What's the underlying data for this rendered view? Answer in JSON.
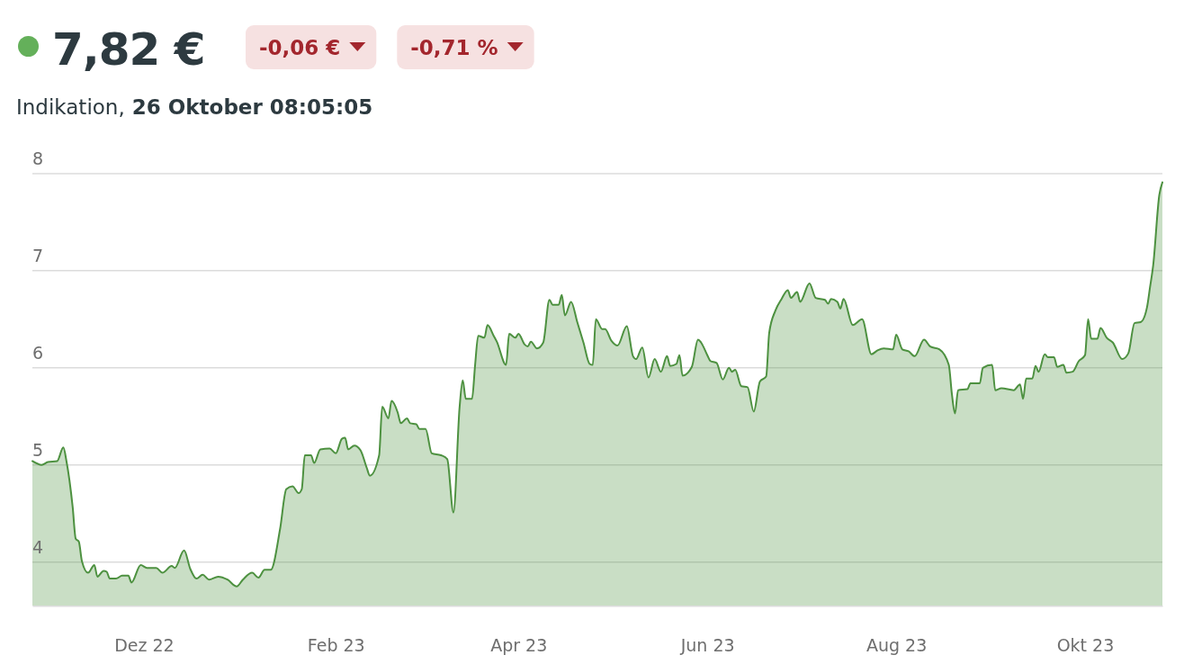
{
  "chart_data": {
    "type": "area",
    "title": "7,82 €",
    "subtitle": "Indikation, 26 Oktober 08:05:05",
    "annotations": [
      "-0,06 €",
      "-0,71 %"
    ],
    "x": [
      "2022-10-26",
      "2022-10-29",
      "2022-10-31",
      "2022-11-03",
      "2022-11-05",
      "2022-11-06",
      "2022-11-08",
      "2022-11-09",
      "2022-11-10",
      "2022-11-11",
      "2022-11-13",
      "2022-11-15",
      "2022-11-16",
      "2022-11-18",
      "2022-11-19",
      "2022-11-20",
      "2022-11-22",
      "2022-11-24",
      "2022-11-26",
      "2022-11-27",
      "2022-11-30",
      "2022-12-02",
      "2022-12-05",
      "2022-12-07",
      "2022-12-10",
      "2022-12-11",
      "2022-12-14",
      "2022-12-16",
      "2022-12-18",
      "2022-12-20",
      "2022-12-22",
      "2022-12-25",
      "2022-12-28",
      "2022-12-31",
      "2023-01-02",
      "2023-01-05",
      "2023-01-07",
      "2023-01-09",
      "2023-01-11",
      "2023-01-14",
      "2023-01-16",
      "2023-01-18",
      "2023-01-20",
      "2023-01-21",
      "2023-01-22",
      "2023-01-24",
      "2023-01-25",
      "2023-01-27",
      "2023-01-30",
      "2023-02-01",
      "2023-02-03",
      "2023-02-04",
      "2023-02-05",
      "2023-02-07",
      "2023-02-09",
      "2023-02-11",
      "2023-02-12",
      "2023-02-15",
      "2023-02-16",
      "2023-02-18",
      "2023-02-19",
      "2023-02-21",
      "2023-02-22",
      "2023-02-24",
      "2023-02-25",
      "2023-02-27",
      "2023-02-28",
      "2023-03-02",
      "2023-03-04",
      "2023-03-07",
      "2023-03-09",
      "2023-03-11",
      "2023-03-13",
      "2023-03-14",
      "2023-03-15",
      "2023-03-17",
      "2023-03-18",
      "2023-03-19",
      "2023-03-21",
      "2023-03-22",
      "2023-03-24",
      "2023-03-25",
      "2023-03-28",
      "2023-03-29",
      "2023-03-31",
      "2023-04-01",
      "2023-04-03",
      "2023-04-04",
      "2023-04-05",
      "2023-04-07",
      "2023-04-09",
      "2023-04-11",
      "2023-04-12",
      "2023-04-14",
      "2023-04-15",
      "2023-04-16",
      "2023-04-18",
      "2023-04-20",
      "2023-04-22",
      "2023-04-24",
      "2023-04-25",
      "2023-04-26",
      "2023-04-28",
      "2023-04-29",
      "2023-05-01",
      "2023-05-03",
      "2023-05-06",
      "2023-05-08",
      "2023-05-09",
      "2023-05-11",
      "2023-05-13",
      "2023-05-15",
      "2023-05-17",
      "2023-05-19",
      "2023-05-20",
      "2023-05-22",
      "2023-05-23",
      "2023-05-24",
      "2023-05-27",
      "2023-05-29",
      "2023-05-30",
      "2023-06-01",
      "2023-06-02",
      "2023-06-04",
      "2023-06-06",
      "2023-06-08",
      "2023-06-09",
      "2023-06-10",
      "2023-06-12",
      "2023-06-14",
      "2023-06-16",
      "2023-06-18",
      "2023-06-20",
      "2023-06-21",
      "2023-06-23",
      "2023-06-25",
      "2023-06-27",
      "2023-06-28",
      "2023-06-30",
      "2023-07-01",
      "2023-07-04",
      "2023-07-06",
      "2023-07-09",
      "2023-07-10",
      "2023-07-11",
      "2023-07-13",
      "2023-07-14",
      "2023-07-15",
      "2023-07-18",
      "2023-07-21",
      "2023-07-24",
      "2023-07-26",
      "2023-07-28",
      "2023-07-31",
      "2023-08-01",
      "2023-08-03",
      "2023-08-05",
      "2023-08-07",
      "2023-08-10",
      "2023-08-12",
      "2023-08-15",
      "2023-08-18",
      "2023-08-19",
      "2023-08-20",
      "2023-08-21",
      "2023-08-24",
      "2023-08-25",
      "2023-08-28",
      "2023-08-29",
      "2023-09-01",
      "2023-09-02",
      "2023-09-04",
      "2023-09-08",
      "2023-09-10",
      "2023-09-11",
      "2023-09-12",
      "2023-09-14",
      "2023-09-15",
      "2023-09-16",
      "2023-09-18",
      "2023-09-19",
      "2023-09-21",
      "2023-09-22",
      "2023-09-24",
      "2023-09-25",
      "2023-09-27",
      "2023-09-29",
      "2023-10-01",
      "2023-10-02",
      "2023-10-03",
      "2023-10-05",
      "2023-10-06",
      "2023-10-08",
      "2023-10-10",
      "2023-10-13",
      "2023-10-15",
      "2023-10-17",
      "2023-10-19",
      "2023-10-21",
      "2023-10-22",
      "2023-10-23",
      "2023-10-25",
      "2023-10-26"
    ],
    "series": [
      {
        "color": "#4d9140",
        "values": [
          5.04,
          5.0,
          5.03,
          5.04,
          5.18,
          5.04,
          4.57,
          4.24,
          4.21,
          4.01,
          3.89,
          3.97,
          3.85,
          3.91,
          3.9,
          3.83,
          3.83,
          3.86,
          3.86,
          3.79,
          3.97,
          3.94,
          3.94,
          3.89,
          3.96,
          3.94,
          4.12,
          3.93,
          3.83,
          3.87,
          3.82,
          3.85,
          3.82,
          3.75,
          3.82,
          3.89,
          3.84,
          3.92,
          3.92,
          4.34,
          4.75,
          4.78,
          4.71,
          4.75,
          5.1,
          5.1,
          5.02,
          5.16,
          5.17,
          5.12,
          5.27,
          5.28,
          5.16,
          5.2,
          5.15,
          4.97,
          4.89,
          5.1,
          5.6,
          5.48,
          5.66,
          5.54,
          5.43,
          5.48,
          5.43,
          5.42,
          5.37,
          5.37,
          5.12,
          5.1,
          5.06,
          4.51,
          5.6,
          5.87,
          5.68,
          5.68,
          6.03,
          6.33,
          6.31,
          6.44,
          6.33,
          6.27,
          6.03,
          6.35,
          6.31,
          6.35,
          6.24,
          6.22,
          6.27,
          6.2,
          6.26,
          6.7,
          6.65,
          6.65,
          6.75,
          6.54,
          6.68,
          6.47,
          6.26,
          6.04,
          6.03,
          6.5,
          6.4,
          6.4,
          6.28,
          6.23,
          6.43,
          6.12,
          6.09,
          6.21,
          5.9,
          6.09,
          5.96,
          6.12,
          6.02,
          6.04,
          6.13,
          5.92,
          6.01,
          6.29,
          6.26,
          6.13,
          6.07,
          6.05,
          5.88,
          6.0,
          5.96,
          5.98,
          5.81,
          5.8,
          5.55,
          5.86,
          5.91,
          6.36,
          6.59,
          6.71,
          6.8,
          6.72,
          6.78,
          6.68,
          6.87,
          6.72,
          6.7,
          6.66,
          6.71,
          6.68,
          6.61,
          6.71,
          6.44,
          6.5,
          6.14,
          6.18,
          6.2,
          6.19,
          6.34,
          6.19,
          6.17,
          6.12,
          6.29,
          6.22,
          6.19,
          6.03,
          5.73,
          5.53,
          5.77,
          5.78,
          5.84,
          5.84,
          6.0,
          6.03,
          5.77,
          5.79,
          5.77,
          5.83,
          5.68,
          5.89,
          5.89,
          6.02,
          5.96,
          6.14,
          6.11,
          6.11,
          6.01,
          6.03,
          5.95,
          5.96,
          6.07,
          6.13,
          6.5,
          6.3,
          6.3,
          6.41,
          6.31,
          6.26,
          6.09,
          6.15,
          6.46,
          6.47,
          6.62,
          6.83,
          7.05,
          7.78,
          7.91
        ]
      }
    ],
    "xlim": [
      "2022-10-26",
      "2023-10-26"
    ],
    "xticks": [
      {
        "value": "2022-12-01",
        "label": "Dez 22"
      },
      {
        "value": "2023-02-01",
        "label": "Feb 23"
      },
      {
        "value": "2023-04-01",
        "label": "Apr 23"
      },
      {
        "value": "2023-06-01",
        "label": "Jun 23"
      },
      {
        "value": "2023-08-01",
        "label": "Aug 23"
      },
      {
        "value": "2023-10-01",
        "label": "Okt 23"
      }
    ],
    "ylim": [
      3.55,
      8
    ],
    "yticks": [
      4,
      5,
      6,
      7,
      8
    ],
    "grid": "y"
  }
}
